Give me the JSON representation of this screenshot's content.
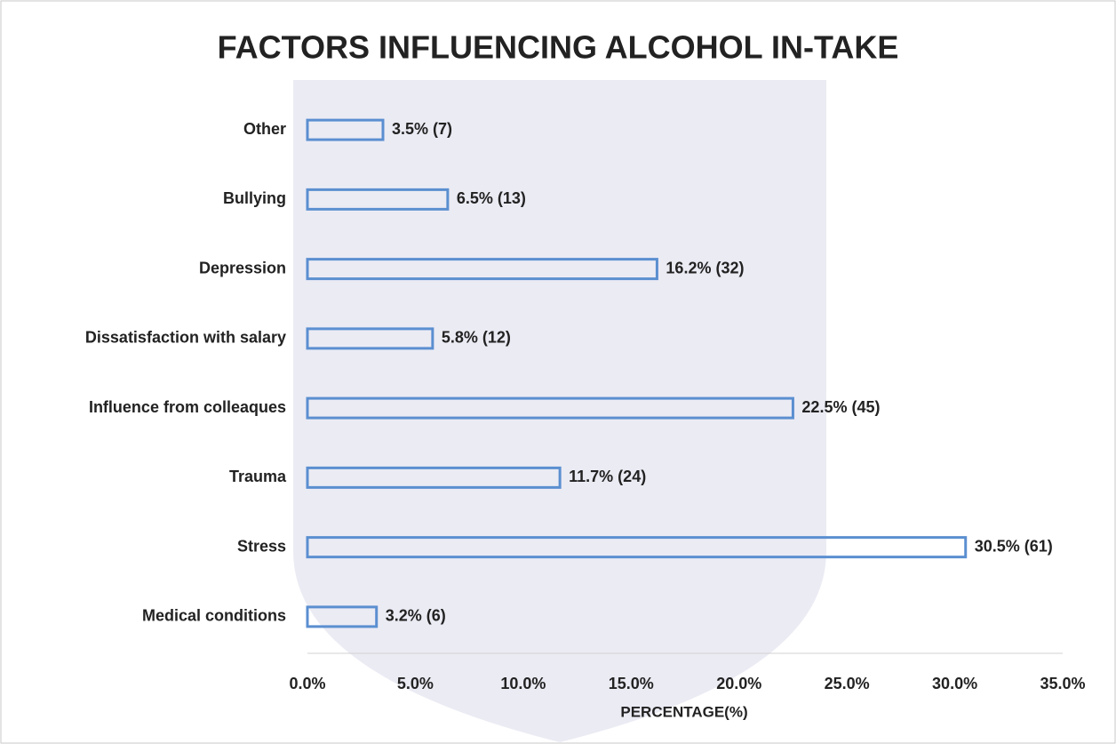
{
  "chart_data": {
    "type": "hbar",
    "title": "FACTORS INFLUENCING ALCOHOL IN-TAKE",
    "categories": [
      "Other",
      "Bullying",
      "Depression",
      "Dissatisfaction with salary",
      "Influence from colleaques",
      "Trauma",
      "Stress",
      "Medical conditions"
    ],
    "values": [
      3.5,
      6.5,
      16.2,
      5.8,
      22.5,
      11.7,
      30.5,
      3.2
    ],
    "value_labels": [
      "3.5% (7)",
      "6.5%  (13)",
      "16.2% (32)",
      "5.8% (12)",
      "22.5% (45)",
      "11.7% (24)",
      "30.5% (61)",
      "3.2% (6)"
    ],
    "color": "#5b8fd0",
    "xlabel": "PERCENTAGE(%)",
    "xlim": [
      0,
      35
    ],
    "xticks": [
      {
        "value": 0,
        "label": "0.0%"
      },
      {
        "value": 5,
        "label": "5.0%"
      },
      {
        "value": 10,
        "label": "10.0%"
      },
      {
        "value": 15,
        "label": "15.0%"
      },
      {
        "value": 20,
        "label": "20.0%"
      },
      {
        "value": 25,
        "label": "25.0%"
      },
      {
        "value": 30,
        "label": "30.0%"
      },
      {
        "value": 35,
        "label": "35.0%"
      }
    ]
  }
}
